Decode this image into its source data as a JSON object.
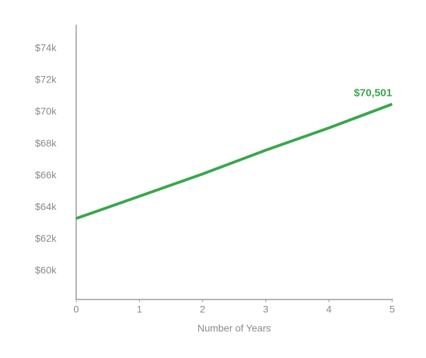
{
  "chart_data": {
    "type": "line",
    "x_label": "Number of Years",
    "x": [
      0,
      1,
      2,
      3,
      4,
      5
    ],
    "xlim": [
      0,
      5
    ],
    "xticks": [
      0,
      1,
      2,
      3,
      4,
      5
    ],
    "ylim": [
      58200,
      75500
    ],
    "yticks": [
      {
        "value": 60000,
        "label": "$60k"
      },
      {
        "value": 62000,
        "label": "$62k"
      },
      {
        "value": 64000,
        "label": "$64k"
      },
      {
        "value": 66000,
        "label": "$66k"
      },
      {
        "value": 68000,
        "label": "$68k"
      },
      {
        "value": 70000,
        "label": "$70k"
      },
      {
        "value": 72000,
        "label": "$72k"
      },
      {
        "value": 74000,
        "label": "$74k"
      }
    ],
    "grid": false,
    "series": [
      {
        "color": "#3aa64b",
        "values": [
          63300,
          64700,
          66100,
          67600,
          69000,
          70501
        ],
        "value_labels": [
          null,
          null,
          null,
          null,
          null,
          "$70,501"
        ]
      }
    ]
  }
}
